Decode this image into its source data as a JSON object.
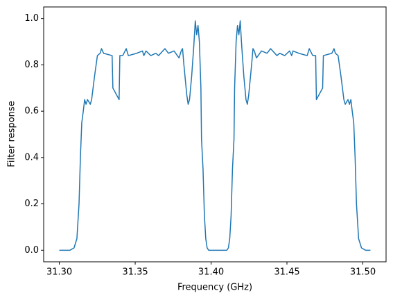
{
  "chart_data": {
    "type": "line",
    "xlabel": "Frequency (GHz)",
    "ylabel": "Filter response",
    "color": "#1f77b4",
    "x": [
      31.3,
      31.307,
      31.3097,
      31.3116,
      31.313,
      31.3139,
      31.3148,
      31.3158,
      31.3167,
      31.3176,
      31.3186,
      31.3195,
      31.3204,
      31.3213,
      31.3232,
      31.3251,
      31.3269,
      31.3278,
      31.3292,
      31.3348,
      31.3353,
      31.3394,
      31.3399,
      31.3418,
      31.3441,
      31.3455,
      31.351,
      31.3548,
      31.3557,
      31.3571,
      31.3603,
      31.3636,
      31.3654,
      31.3696,
      31.3719,
      31.3756,
      31.3789,
      31.3803,
      31.3812,
      31.3821,
      31.384,
      31.3849,
      31.3858,
      31.3872,
      31.3886,
      31.3896,
      31.3905,
      31.3914,
      31.3923,
      31.3933,
      31.3937,
      31.3947,
      31.3956,
      31.3965,
      31.3974,
      31.3984,
      31.4104,
      31.4114,
      31.4123,
      31.4132,
      31.4141,
      31.4151,
      31.4155,
      31.4165,
      31.4174,
      31.4183,
      31.4192,
      31.4202,
      31.4216,
      31.423,
      31.4239,
      31.4248,
      31.4267,
      31.4276,
      31.4285,
      31.4299,
      31.4332,
      31.4369,
      31.4392,
      31.4434,
      31.4452,
      31.4485,
      31.4517,
      31.4531,
      31.454,
      31.4578,
      31.4633,
      31.4647,
      31.467,
      31.4689,
      31.4694,
      31.4735,
      31.474,
      31.4796,
      31.481,
      31.4819,
      31.4837,
      31.4856,
      31.4875,
      31.4884,
      31.4893,
      31.4902,
      31.4912,
      31.4921,
      31.493,
      31.494,
      31.4949,
      31.4958,
      31.4972,
      31.4991,
      31.5018,
      31.505
    ],
    "values": [
      0.0,
      0.0,
      0.01,
      0.05,
      0.2,
      0.4,
      0.55,
      0.6,
      0.65,
      0.63,
      0.65,
      0.64,
      0.63,
      0.65,
      0.75,
      0.84,
      0.85,
      0.87,
      0.85,
      0.84,
      0.7,
      0.65,
      0.84,
      0.84,
      0.87,
      0.84,
      0.85,
      0.86,
      0.84,
      0.86,
      0.84,
      0.85,
      0.84,
      0.87,
      0.85,
      0.86,
      0.83,
      0.86,
      0.87,
      0.8,
      0.67,
      0.63,
      0.65,
      0.75,
      0.88,
      0.99,
      0.93,
      0.97,
      0.9,
      0.7,
      0.48,
      0.35,
      0.15,
      0.05,
      0.01,
      0.0,
      0.0,
      0.01,
      0.05,
      0.15,
      0.35,
      0.48,
      0.7,
      0.9,
      0.97,
      0.93,
      0.99,
      0.88,
      0.75,
      0.65,
      0.63,
      0.67,
      0.8,
      0.87,
      0.86,
      0.83,
      0.86,
      0.85,
      0.87,
      0.84,
      0.85,
      0.84,
      0.86,
      0.84,
      0.86,
      0.85,
      0.84,
      0.87,
      0.84,
      0.84,
      0.65,
      0.7,
      0.84,
      0.85,
      0.87,
      0.85,
      0.84,
      0.75,
      0.65,
      0.63,
      0.64,
      0.65,
      0.63,
      0.65,
      0.6,
      0.55,
      0.4,
      0.2,
      0.05,
      0.01,
      0.0,
      0.0
    ],
    "xlim": [
      31.2897,
      31.5153
    ],
    "xticks": [
      {
        "value": 31.3,
        "label": "31.30"
      },
      {
        "value": 31.35,
        "label": "31.35"
      },
      {
        "value": 31.4,
        "label": "31.40"
      },
      {
        "value": 31.45,
        "label": "31.45"
      },
      {
        "value": 31.5,
        "label": "31.50"
      }
    ],
    "ylim": [
      -0.05,
      1.05
    ],
    "yticks": [
      {
        "value": 0,
        "label": "0.0"
      },
      0.2,
      0.4,
      0.6,
      0.8,
      {
        "value": 1,
        "label": "1.0"
      }
    ]
  }
}
